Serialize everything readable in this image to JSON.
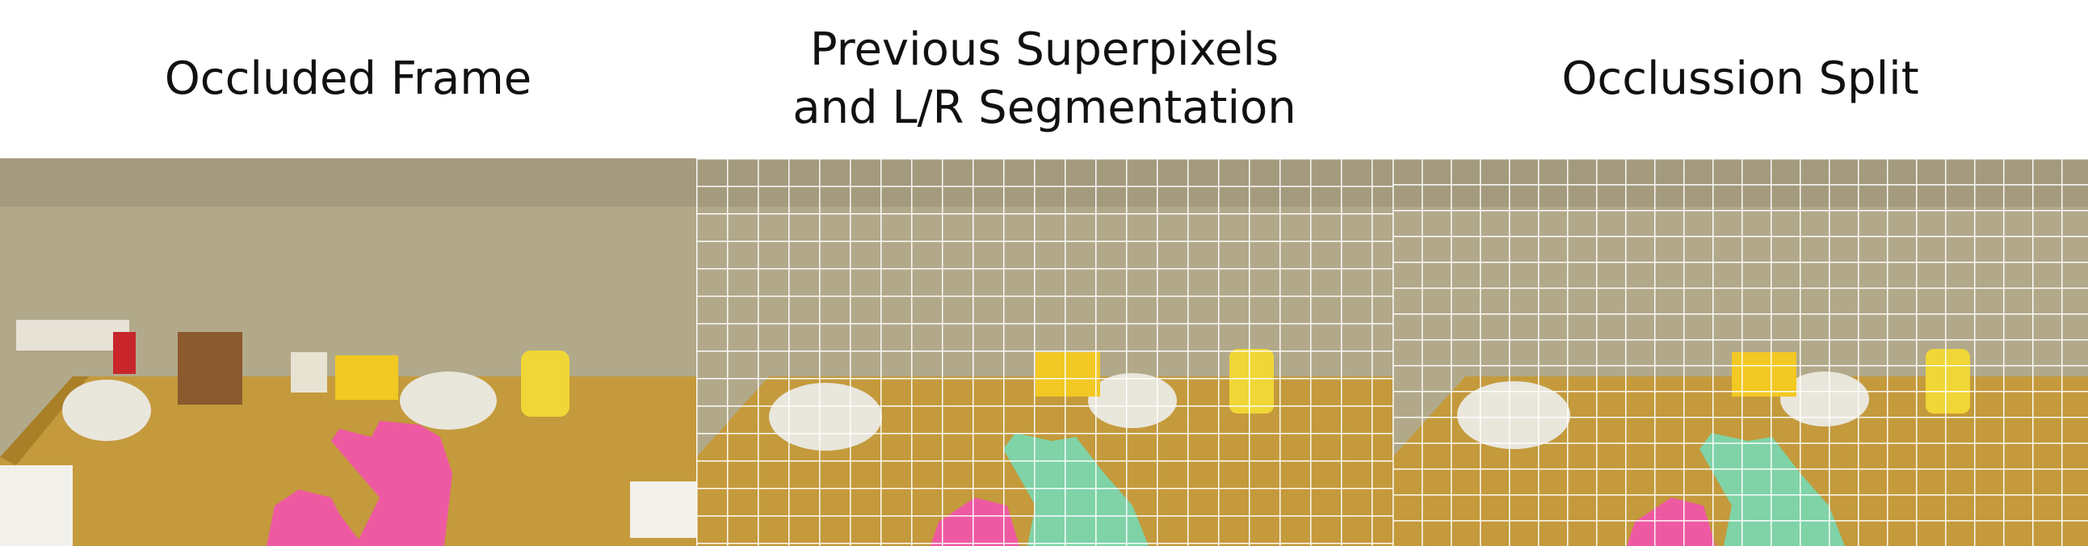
{
  "figure": {
    "panels": [
      {
        "title": "Occluded Frame"
      },
      {
        "title_line1": "Previous Superpixels",
        "title_line2": "and L/R Segmentation"
      },
      {
        "title": "Occlussion Split"
      }
    ]
  },
  "colors": {
    "wall": "#b2a98a",
    "wall_dark": "#8a8067",
    "desk": "#c49a3c",
    "desk_edge": "#a97f28",
    "left_hand_pink": "#ee5aa2",
    "right_hand_green": "#7fd3a7",
    "superpixel_boundary": "#ffffff",
    "box_yellow": "#f2c823",
    "cup_red": "#c8262b",
    "plate": "#e9e6dc"
  }
}
